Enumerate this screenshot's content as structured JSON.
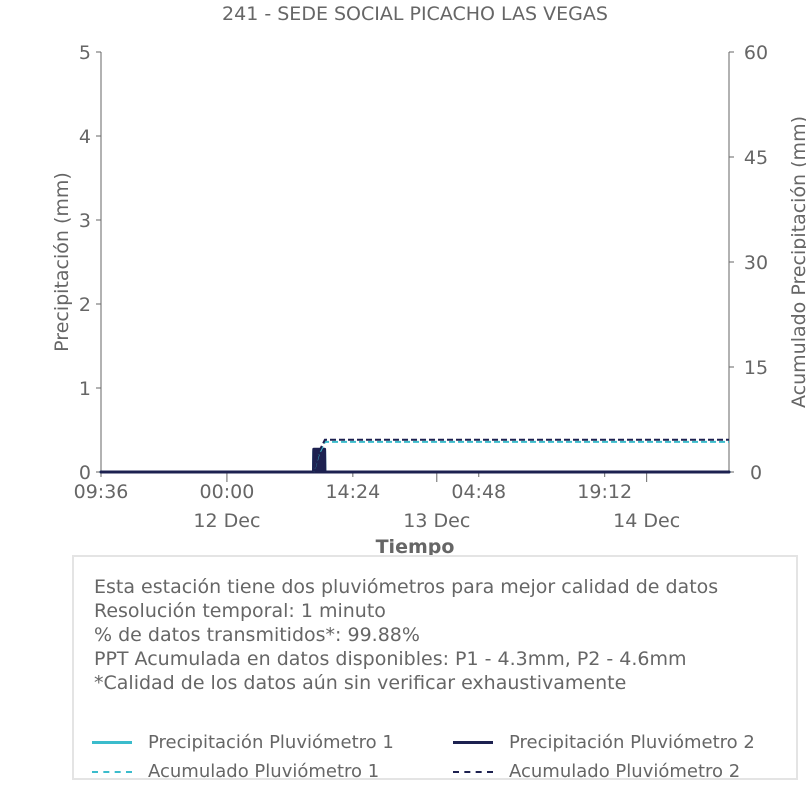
{
  "title": "241 - SEDE SOCIAL PICACHO LAS VEGAS",
  "chart_data": {
    "type": "line",
    "xlabel": "Tiempo",
    "ylabel": "Precipitación (mm)",
    "y2label": "Acumulado Precipitación (mm)",
    "xlim": [
      "Dec 11 09:36",
      "Dec 14 09:25"
    ],
    "ylim": [
      0,
      5
    ],
    "y2lim": [
      0,
      60
    ],
    "yticks": [
      "0",
      "1",
      "2",
      "3",
      "4",
      "5"
    ],
    "y2ticks": [
      "0",
      "15",
      "30",
      "45",
      "60"
    ],
    "xticks": [
      {
        "label": "09:36",
        "at": "Dec 11 09:36"
      },
      {
        "label": "00:00",
        "sub": "12 Dec",
        "at": "Dec 12 00:00"
      },
      {
        "label": "14:24",
        "at": "Dec 12 14:24"
      },
      {
        "label": "",
        "sub": "13 Dec",
        "at": "Dec 13 00:00"
      },
      {
        "label": "04:48",
        "at": "Dec 13 04:48"
      },
      {
        "label": "19:12",
        "at": "Dec 13 19:12"
      },
      {
        "label": "",
        "sub": "14 Dec",
        "at": "Dec 14 00:00"
      }
    ],
    "grid": false,
    "series": [
      {
        "name": "Precipitación Pluviómetro 1",
        "axis": "left",
        "style": "solid",
        "color": "#3bbccc",
        "x": [
          "Dec 11 09:36",
          "Dec 12 09:54",
          "Dec 12 09:56",
          "Dec 12 11:10",
          "Dec 12 11:12",
          "Dec 14 09:25"
        ],
        "y": [
          0,
          0,
          0.25,
          0.25,
          0,
          0
        ]
      },
      {
        "name": "Precipitación Pluviómetro 2",
        "axis": "left",
        "style": "solid",
        "color": "#1d2150",
        "x": [
          "Dec 11 09:36",
          "Dec 12 09:54",
          "Dec 12 09:56",
          "Dec 12 11:10",
          "Dec 12 11:12",
          "Dec 14 09:25"
        ],
        "y": [
          0,
          0,
          0.27,
          0.27,
          0,
          0
        ]
      },
      {
        "name": "Acumulado Pluviómetro 1",
        "axis": "right",
        "style": "dashed",
        "color": "#3bbccc",
        "x": [
          "Dec 11 09:36",
          "Dec 12 09:55",
          "Dec 12 10:30",
          "Dec 12 11:12",
          "Dec 14 09:25"
        ],
        "y": [
          0,
          0,
          2.5,
          4.3,
          4.3
        ]
      },
      {
        "name": "Acumulado Pluviómetro 2",
        "axis": "right",
        "style": "dashed",
        "color": "#1d2150",
        "x": [
          "Dec 11 09:36",
          "Dec 12 09:55",
          "Dec 12 10:30",
          "Dec 12 11:12",
          "Dec 14 09:25"
        ],
        "y": [
          0,
          0,
          2.8,
          4.6,
          4.6
        ]
      }
    ]
  },
  "info": {
    "lines": [
      "Esta estación tiene dos pluviómetros para mejor calidad de datos",
      "Resolución temporal: 1 minuto",
      "% de datos transmitidos*: 99.88%",
      "PPT Acumulada en datos disponibles: P1 - 4.3mm, P2 - 4.6mm",
      "*Calidad de los datos aún sin verificar exhaustivamente"
    ]
  },
  "legend": [
    "Precipitación Pluviómetro 1",
    "Precipitación Pluviómetro 2",
    "Acumulado Pluviómetro 1",
    "Acumulado Pluviómetro 2"
  ]
}
